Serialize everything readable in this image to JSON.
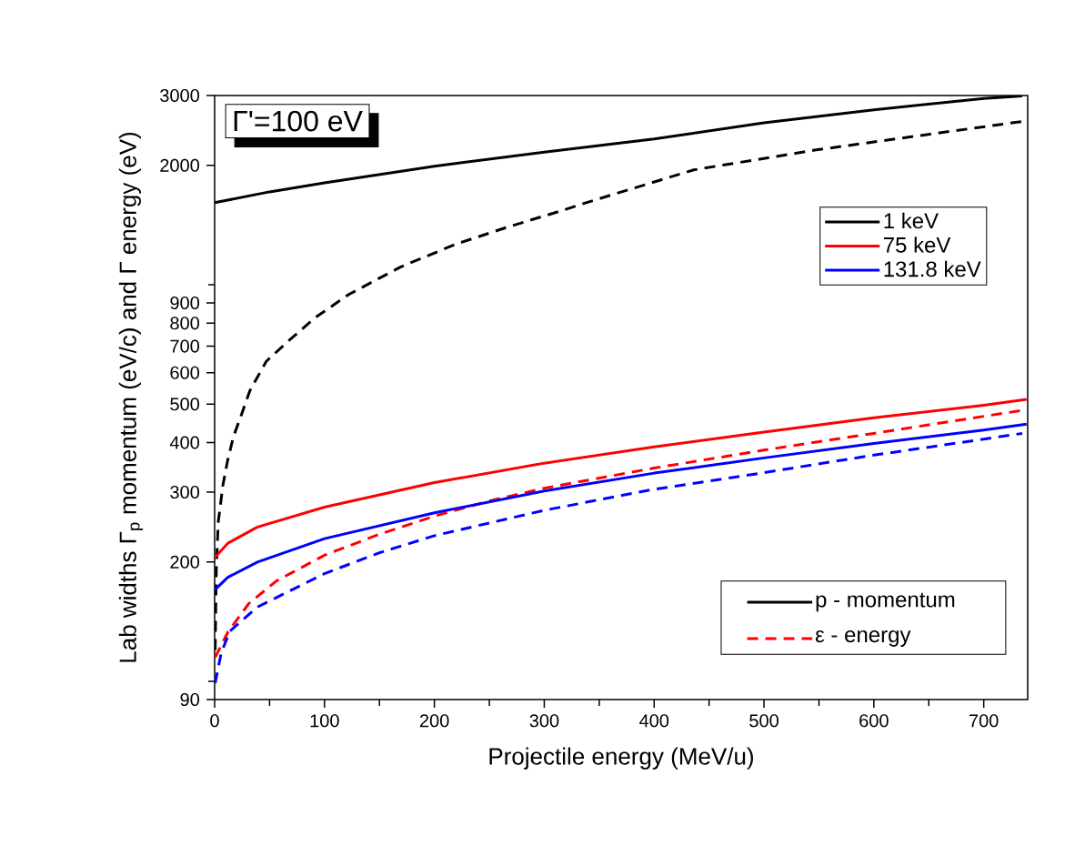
{
  "chart_data": {
    "type": "line",
    "xlabel": "Projectile energy (MeV/u)",
    "ylabel": "Lab widths Γ$_{p}$ momentum (eV/c) and Γ energy (eV)",
    "annotations": [
      "Γ'=100 eV",
      "p - momentum",
      "ε - energy"
    ],
    "xlim": [
      0,
      740
    ],
    "xticks": [
      0,
      {
        "value": 50,
        "label": null
      },
      100,
      {
        "value": 150,
        "label": null
      },
      200,
      {
        "value": 250,
        "label": null
      },
      300,
      {
        "value": 350,
        "label": null
      },
      400,
      {
        "value": 450,
        "label": null
      },
      500,
      {
        "value": 550,
        "label": null
      },
      600,
      {
        "value": 650,
        "label": null
      },
      700
    ],
    "ylim": [
      90,
      3000
    ],
    "yticks": [
      90,
      {
        "value": 100,
        "label": null
      },
      200,
      300,
      400,
      500,
      600,
      700,
      800,
      900,
      {
        "value": 1000,
        "label": null
      },
      2000,
      3000
    ],
    "log": "y",
    "legend": "right",
    "series": [
      {
        "name": "1 keV",
        "color": "#000000",
        "line_style": "solid",
        "x": [
          0,
          50,
          100,
          200,
          300,
          400,
          500,
          600,
          700,
          735
        ],
        "values": [
          1610,
          1715,
          1806,
          1990,
          2160,
          2330,
          2560,
          2760,
          2950,
          2990
        ]
      },
      {
        "color": "#000000",
        "line_style": "dashed",
        "x": [
          0.5,
          1.5,
          3.3,
          7.5,
          11.6,
          17,
          24,
          32,
          47,
          68,
          92,
          122,
          169,
          219,
          265,
          315,
          338,
          436,
          546,
          656,
          735
        ],
        "values": [
          120,
          190,
          252,
          312,
          358,
          413,
          467,
          540,
          641,
          725,
          828,
          945,
          1108,
          1264,
          1393,
          1535,
          1610,
          1948,
          2184,
          2407,
          2580
        ]
      },
      {
        "name": "75 keV",
        "color": "#ff0000",
        "line_style": "solid",
        "x": [
          0,
          12,
          39,
          100,
          200,
          300,
          400,
          500,
          600,
          700,
          739
        ],
        "values": [
          205,
          223,
          245,
          275,
          317,
          355,
          390,
          425,
          462,
          497,
          514
        ]
      },
      {
        "color": "#ff0000",
        "line_style": "dashed",
        "x": [
          0.5,
          12,
          31,
          56,
          100,
          150,
          200,
          250,
          300,
          400,
          500,
          600,
          700,
          735
        ],
        "values": [
          115,
          133,
          157,
          179,
          208,
          235,
          261,
          285,
          307,
          345,
          383,
          422,
          466,
          482
        ]
      },
      {
        "name": "131.8 keV",
        "color": "#0000ff",
        "line_style": "solid",
        "x": [
          0,
          12,
          39,
          100,
          200,
          300,
          400,
          500,
          600,
          700,
          739
        ],
        "values": [
          170,
          183,
          200,
          229,
          266,
          302,
          335,
          366,
          398,
          430,
          445
        ]
      },
      {
        "color": "#0000ff",
        "line_style": "dashed",
        "x": [
          0.5,
          6,
          14,
          39,
          100,
          150,
          200,
          300,
          400,
          500,
          600,
          700,
          735
        ],
        "values": [
          99,
          118,
          134,
          154,
          187,
          211,
          233,
          270,
          305,
          336,
          372,
          408,
          422
        ]
      }
    ]
  }
}
